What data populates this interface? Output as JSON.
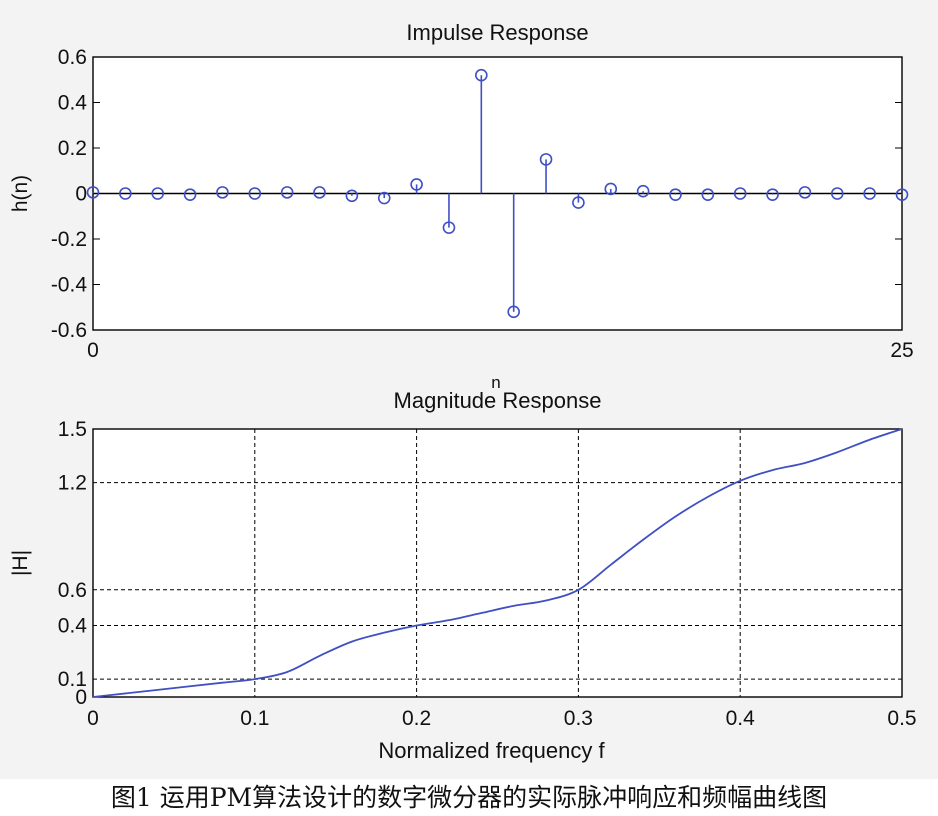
{
  "colors": {
    "series": "#3f4fc4",
    "axes": "#000000",
    "grid": "#000000"
  },
  "caption": "图1 运用PM算法设计的数字微分器的实际脉冲响应和频幅曲线图",
  "chart_data": [
    {
      "type": "stem",
      "title": "Impulse Response",
      "xlabel": "n",
      "ylabel": "h(n)",
      "xlim": [
        0,
        25
      ],
      "ylim": [
        -0.6,
        0.6
      ],
      "xticks": [
        "0",
        "25"
      ],
      "yticks": [
        "0.6",
        "0.4",
        "0.2",
        "0",
        "-0.2",
        "-0.4",
        "-0.6"
      ],
      "grid": false,
      "x": [
        0,
        1,
        2,
        3,
        4,
        5,
        6,
        7,
        8,
        9,
        10,
        11,
        12,
        13,
        14,
        15,
        16,
        17,
        18,
        19,
        20,
        21,
        22,
        23,
        24,
        25
      ],
      "values": [
        0.005,
        0.0,
        0.0,
        -0.005,
        0.005,
        0.0,
        0.005,
        0.005,
        -0.01,
        -0.02,
        0.04,
        -0.15,
        0.52,
        -0.52,
        0.15,
        -0.04,
        0.02,
        0.01,
        -0.005,
        -0.005,
        0.0,
        -0.005,
        0.005,
        0.0,
        0.0,
        -0.005
      ]
    },
    {
      "type": "line",
      "title": "Magnitude Response",
      "xlabel": "Normalized frequency f",
      "ylabel": "|H|",
      "xlim": [
        0,
        0.5
      ],
      "ylim": [
        0,
        1.5
      ],
      "xticks": [
        "0",
        "0.1",
        "0.2",
        "0.3",
        "0.4",
        "0.5"
      ],
      "yticks": [
        "1.5",
        "1.2",
        "0.6",
        "0.4",
        "0.1",
        "0"
      ],
      "grid": true,
      "x": [
        0,
        0.02,
        0.04,
        0.06,
        0.08,
        0.1,
        0.12,
        0.14,
        0.16,
        0.18,
        0.2,
        0.22,
        0.24,
        0.26,
        0.28,
        0.3,
        0.32,
        0.34,
        0.36,
        0.38,
        0.4,
        0.42,
        0.44,
        0.46,
        0.48,
        0.5
      ],
      "values": [
        0.0,
        0.02,
        0.04,
        0.06,
        0.08,
        0.1,
        0.14,
        0.23,
        0.31,
        0.36,
        0.4,
        0.43,
        0.47,
        0.51,
        0.54,
        0.6,
        0.74,
        0.88,
        1.01,
        1.12,
        1.21,
        1.27,
        1.31,
        1.37,
        1.44,
        1.5
      ]
    }
  ]
}
